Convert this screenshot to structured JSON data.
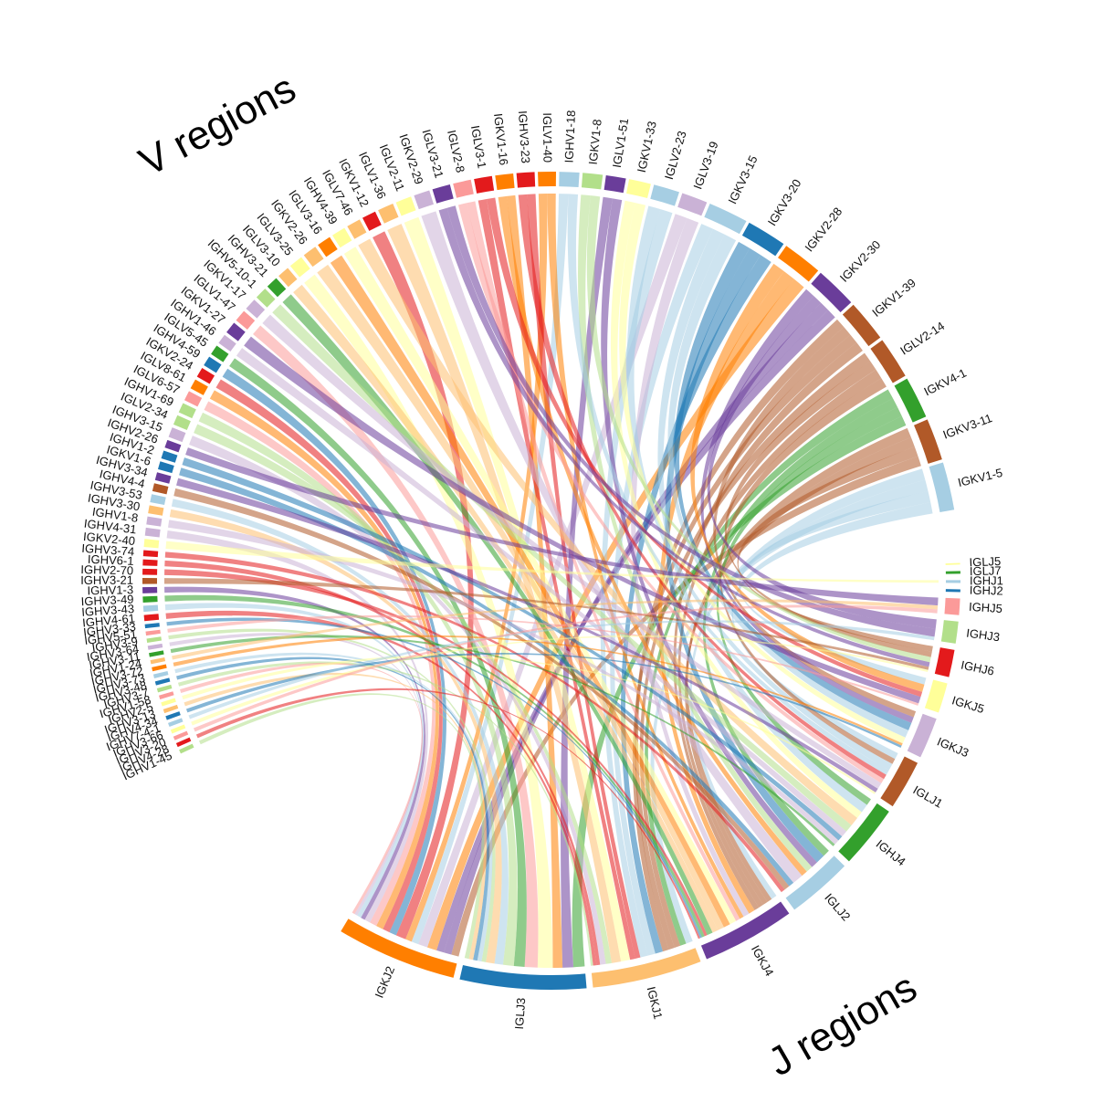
{
  "chart_data": {
    "type": "chord",
    "annotations": {
      "v_title": "V regions",
      "j_title": "J regions"
    },
    "palette": [
      "#a6cee3",
      "#1f78b4",
      "#b2df8a",
      "#33a02c",
      "#fb9a99",
      "#e31a1c",
      "#fdbf6f",
      "#ff7f00",
      "#cab2d6",
      "#6a3d9a",
      "#ffff99",
      "#b15928"
    ],
    "v_segments": [
      {
        "label": "IGKV1-5",
        "value": 24,
        "color": "#a6cee3"
      },
      {
        "label": "IGKV3-11",
        "value": 21,
        "color": "#b15928"
      },
      {
        "label": "IGKV4-1",
        "value": 21,
        "color": "#33a02c"
      },
      {
        "label": "IGLV2-14",
        "value": 21,
        "color": "#b15928"
      },
      {
        "label": "IGKV1-39",
        "value": 21,
        "color": "#b15928"
      },
      {
        "label": "IGKV2-30",
        "value": 21,
        "color": "#6a3d9a"
      },
      {
        "label": "IGKV2-28",
        "value": 20,
        "color": "#ff7f00"
      },
      {
        "label": "IGKV3-20",
        "value": 20,
        "color": "#1f78b4"
      },
      {
        "label": "IGKV3-15",
        "value": 20,
        "color": "#a6cee3"
      },
      {
        "label": "IGLV3-19",
        "value": 13,
        "color": "#cab2d6"
      },
      {
        "label": "IGLV2-23",
        "value": 13,
        "color": "#a6cee3"
      },
      {
        "label": "IGKV1-33",
        "value": 11,
        "color": "#ffff99"
      },
      {
        "label": "IGLV1-51",
        "value": 10,
        "color": "#6a3d9a"
      },
      {
        "label": "IGKV1-8",
        "value": 10,
        "color": "#b2df8a"
      },
      {
        "label": "IGHV1-18",
        "value": 10,
        "color": "#a6cee3"
      },
      {
        "label": "IGLV1-40",
        "value": 9,
        "color": "#ff7f00"
      },
      {
        "label": "IGHV3-23",
        "value": 9,
        "color": "#e31a1c"
      },
      {
        "label": "IGKV1-16",
        "value": 9,
        "color": "#ff7f00"
      },
      {
        "label": "IGLV3-1",
        "value": 9,
        "color": "#e31a1c"
      },
      {
        "label": "IGLV2-8",
        "value": 9,
        "color": "#fb9a99"
      },
      {
        "label": "IGLV3-21",
        "value": 9,
        "color": "#6a3d9a"
      },
      {
        "label": "IGKV2-29",
        "value": 8,
        "color": "#cab2d6"
      },
      {
        "label": "IGLV2-11",
        "value": 8,
        "color": "#ffff99"
      },
      {
        "label": "IGLV1-36",
        "value": 8,
        "color": "#fdbf6f"
      },
      {
        "label": "IGKV1-12",
        "value": 7,
        "color": "#e31a1c"
      },
      {
        "label": "IGLV7-46",
        "value": 7,
        "color": "#fdbf6f"
      },
      {
        "label": "IGHV4-39",
        "value": 7,
        "color": "#ffff99"
      },
      {
        "label": "IGLV3-16",
        "value": 7,
        "color": "#ff7f00"
      },
      {
        "label": "IGKV2-26",
        "value": 7,
        "color": "#fdbf6f"
      },
      {
        "label": "IGLV3-25",
        "value": 7,
        "color": "#ffff99"
      },
      {
        "label": "IGLV3-10",
        "value": 6,
        "color": "#fdbf6f"
      },
      {
        "label": "IGHV3-21",
        "value": 6,
        "color": "#33a02c"
      },
      {
        "label": "IGHV5-10-1",
        "value": 6,
        "color": "#b2df8a"
      },
      {
        "label": "IGKV1-17",
        "value": 6,
        "color": "#cab2d6"
      },
      {
        "label": "IGLV1-47",
        "value": 6,
        "color": "#fb9a99"
      },
      {
        "label": "IGKV1-27",
        "value": 6,
        "color": "#6a3d9a"
      },
      {
        "label": "IGHV1-46",
        "value": 5,
        "color": "#cab2d6"
      },
      {
        "label": "IGLV5-45",
        "value": 5,
        "color": "#33a02c"
      },
      {
        "label": "IGHV4-59",
        "value": 5,
        "color": "#1f78b4"
      },
      {
        "label": "IGKV2-24",
        "value": 5,
        "color": "#e31a1c"
      },
      {
        "label": "IGLV8-61",
        "value": 5,
        "color": "#ff7f00"
      },
      {
        "label": "IGLV6-57",
        "value": 5,
        "color": "#fb9a99"
      },
      {
        "label": "IGHV1-69",
        "value": 5,
        "color": "#b2df8a"
      },
      {
        "label": "IGLV2-34",
        "value": 5,
        "color": "#b2df8a"
      },
      {
        "label": "IGHV3-15",
        "value": 5,
        "color": "#cab2d6"
      },
      {
        "label": "IGHV2-26",
        "value": 4,
        "color": "#6a3d9a"
      },
      {
        "label": "IGHV1-2",
        "value": 4,
        "color": "#1f78b4"
      },
      {
        "label": "IGKV1-6",
        "value": 4,
        "color": "#1f78b4"
      },
      {
        "label": "IGHV3-34",
        "value": 4,
        "color": "#6a3d9a"
      },
      {
        "label": "IGHV4-4",
        "value": 4,
        "color": "#b15928"
      },
      {
        "label": "IGHV3-53",
        "value": 4,
        "color": "#a6cee3"
      },
      {
        "label": "IGHV3-30",
        "value": 4,
        "color": "#fdbf6f"
      },
      {
        "label": "IGHV1-8",
        "value": 4,
        "color": "#cab2d6"
      },
      {
        "label": "IGHV4-31",
        "value": 4,
        "color": "#cab2d6"
      },
      {
        "label": "IGKV2-40",
        "value": 4,
        "color": "#ffff99"
      },
      {
        "label": "IGHV3-74",
        "value": 3,
        "color": "#e31a1c"
      },
      {
        "label": "IGHV6-1",
        "value": 3,
        "color": "#e31a1c"
      },
      {
        "label": "IGHV2-70",
        "value": 3,
        "color": "#e31a1c"
      },
      {
        "label": "IGHV3-21",
        "value": 3,
        "color": "#b15928"
      },
      {
        "label": "IGHV1-3",
        "value": 3,
        "color": "#6a3d9a"
      },
      {
        "label": "IGHV3-49",
        "value": 3,
        "color": "#33a02c"
      },
      {
        "label": "IGHV3-43",
        "value": 3,
        "color": "#a6cee3"
      },
      {
        "label": "IGHV4-61",
        "value": 3,
        "color": "#e31a1c"
      },
      {
        "label": "IGHV3-33",
        "value": 2,
        "color": "#1f78b4"
      },
      {
        "label": "IGHV5-51",
        "value": 2,
        "color": "#fb9a99"
      },
      {
        "label": "IGHV3-9",
        "value": 2,
        "color": "#b2df8a"
      },
      {
        "label": "IGHV3-64",
        "value": 2,
        "color": "#cab2d6"
      },
      {
        "label": "IGHV3-11",
        "value": 2,
        "color": "#33a02c"
      },
      {
        "label": "IGHV1-24",
        "value": 2,
        "color": "#fdbf6f"
      },
      {
        "label": "IGHV3-72",
        "value": 2,
        "color": "#ff7f00"
      },
      {
        "label": "IGHV3-73",
        "value": 2,
        "color": "#a6cee3"
      },
      {
        "label": "IGHV3-48",
        "value": 2,
        "color": "#1f78b4"
      },
      {
        "label": "IGHV3-7",
        "value": 2,
        "color": "#b2df8a"
      },
      {
        "label": "IGHV1-58",
        "value": 2,
        "color": "#fb9a99"
      },
      {
        "label": "IGHV2-5",
        "value": 2,
        "color": "#ffff99"
      },
      {
        "label": "IGHV3-13",
        "value": 2,
        "color": "#fdbf6f"
      },
      {
        "label": "IGHV4-34",
        "value": 2,
        "color": "#1f78b4"
      },
      {
        "label": "IGHV7-4-1",
        "value": 2,
        "color": "#a6cee3"
      },
      {
        "label": "IGHV3-66",
        "value": 2,
        "color": "#ffff99"
      },
      {
        "label": "IGHV3-20",
        "value": 2,
        "color": "#fb9a99"
      },
      {
        "label": "IGHV4-28",
        "value": 2,
        "color": "#e31a1c"
      },
      {
        "label": "IGHV1-45",
        "value": 2,
        "color": "#b2df8a"
      }
    ],
    "j_segments": [
      {
        "label": "IGLJ5",
        "value": 0.6,
        "color": "#ffff99"
      },
      {
        "label": "IGLJ7",
        "value": 1.0,
        "color": "#33a02c"
      },
      {
        "label": "IGHJ1",
        "value": 1.0,
        "color": "#a6cee3"
      },
      {
        "label": "IGHJ2",
        "value": 1.0,
        "color": "#1f78b4"
      },
      {
        "label": "IGHJ5",
        "value": 6,
        "color": "#fb9a99"
      },
      {
        "label": "IGHJ3",
        "value": 8,
        "color": "#b2df8a"
      },
      {
        "label": "IGHJ6",
        "value": 10,
        "color": "#e31a1c"
      },
      {
        "label": "IGKJ5",
        "value": 11,
        "color": "#ffff99"
      },
      {
        "label": "IGKJ3",
        "value": 15,
        "color": "#cab2d6"
      },
      {
        "label": "IGLJ1",
        "value": 18,
        "color": "#b15928"
      },
      {
        "label": "IGHJ4",
        "value": 23,
        "color": "#33a02c"
      },
      {
        "label": "IGLJ2",
        "value": 24,
        "color": "#a6cee3"
      },
      {
        "label": "IGKJ4",
        "value": 34,
        "color": "#6a3d9a"
      },
      {
        "label": "IGKJ1",
        "value": 40,
        "color": "#fdbf6f"
      },
      {
        "label": "IGLJ3",
        "value": 46,
        "color": "#1f78b4"
      },
      {
        "label": "IGKJ2",
        "value": 44,
        "color": "#ff7f00"
      }
    ]
  }
}
